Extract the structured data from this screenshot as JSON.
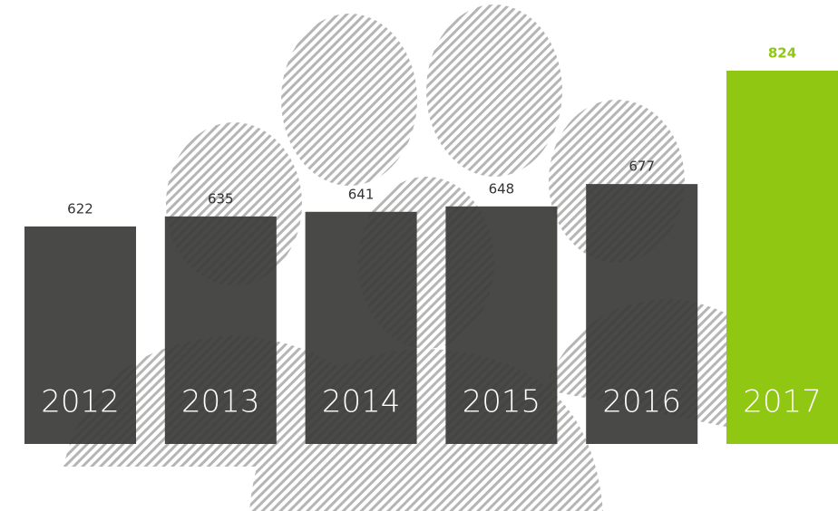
{
  "chart_data": {
    "type": "bar",
    "categories": [
      "2012",
      "2013",
      "2014",
      "2015",
      "2016",
      "2017"
    ],
    "values": [
      622,
      635,
      641,
      648,
      677,
      824
    ],
    "colors": [
      "#3b3b39",
      "#3b3b39",
      "#3b3b39",
      "#3b3b39",
      "#3b3b39",
      "#8fc712"
    ],
    "ylim": [
      340,
      824
    ]
  }
}
